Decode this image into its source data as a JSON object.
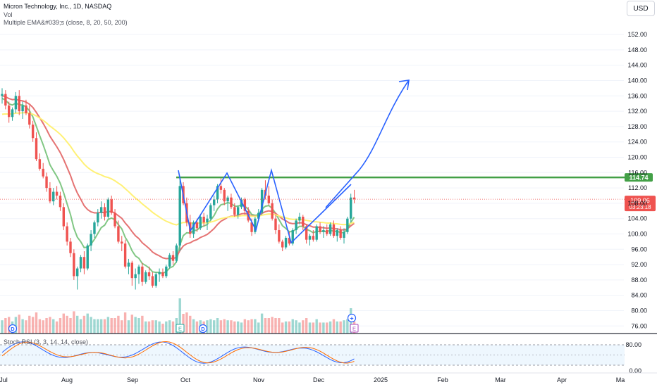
{
  "header": {
    "title": "Micron Technology, Inc., 1D, NASDAQ",
    "vol_label": "Vol",
    "ema_label": "Multiple EMA&#039;s (close, 8, 20, 50, 200)"
  },
  "currency_button": "USD",
  "rsi_label": "Stoch RSI (3, 3, 14, 14, close)",
  "chart_data": {
    "type": "candlestick",
    "symbol": "Micron Technology, Inc.",
    "interval": "1D",
    "exchange": "NASDAQ",
    "y_ticks": [
      "152.00",
      "148.00",
      "144.00",
      "140.00",
      "136.00",
      "132.00",
      "128.00",
      "124.00",
      "120.00",
      "116.00",
      "112.00",
      "108.00",
      "104.00",
      "100.00",
      "96.00",
      "92.00",
      "88.00",
      "84.00",
      "80.00",
      "76.00"
    ],
    "y_tick_values": [
      152,
      148,
      144,
      140,
      136,
      132,
      128,
      124,
      120,
      116,
      112,
      108,
      104,
      100,
      96,
      92,
      88,
      84,
      80,
      76
    ],
    "x_ticks": [
      "Jul",
      "Aug",
      "Sep",
      "Oct",
      "Nov",
      "Dec",
      "2025",
      "Feb",
      "Mar",
      "Apr",
      "Ma"
    ],
    "price_range": [
      73.5,
      155.5
    ],
    "resistance_level": 114.74,
    "resistance_label": "114.74",
    "last_price": "109.06",
    "countdown": "03:23:18",
    "candles": [
      [
        136.0,
        138.0,
        134.0,
        136.5
      ],
      [
        136.5,
        137.5,
        132.5,
        133.5
      ],
      [
        133.5,
        134.5,
        129.0,
        130.5
      ],
      [
        130.5,
        133.0,
        129.5,
        132.5
      ],
      [
        132.5,
        137.0,
        131.5,
        136.0
      ],
      [
        136.0,
        137.5,
        131.0,
        132.0
      ],
      [
        132.0,
        134.5,
        130.0,
        133.5
      ],
      [
        133.5,
        135.0,
        131.0,
        131.5
      ],
      [
        131.5,
        133.5,
        127.5,
        128.5
      ],
      [
        128.5,
        129.5,
        124.0,
        125.0
      ],
      [
        125.0,
        126.5,
        119.0,
        119.5
      ],
      [
        119.5,
        121.0,
        116.5,
        117.0
      ],
      [
        117.0,
        118.5,
        114.5,
        115.0
      ],
      [
        115.0,
        116.0,
        111.0,
        112.0
      ],
      [
        112.0,
        113.5,
        108.0,
        108.5
      ],
      [
        108.5,
        112.0,
        107.5,
        111.0
      ],
      [
        111.0,
        112.5,
        109.0,
        110.0
      ],
      [
        110.0,
        111.0,
        106.0,
        107.0
      ],
      [
        107.0,
        108.0,
        101.0,
        102.0
      ],
      [
        102.0,
        103.0,
        97.0,
        98.0
      ],
      [
        98.0,
        99.0,
        94.0,
        95.0
      ],
      [
        95.0,
        96.0,
        88.0,
        89.0
      ],
      [
        89.0,
        91.5,
        85.5,
        91.0
      ],
      [
        91.0,
        94.5,
        90.0,
        94.0
      ],
      [
        94.0,
        95.5,
        89.5,
        91.0
      ],
      [
        91.0,
        97.5,
        90.5,
        97.0
      ],
      [
        97.0,
        101.0,
        95.5,
        100.0
      ],
      [
        100.0,
        103.5,
        99.0,
        103.0
      ],
      [
        103.0,
        106.5,
        102.0,
        105.5
      ],
      [
        105.5,
        108.5,
        104.0,
        107.0
      ],
      [
        107.0,
        108.0,
        103.5,
        104.5
      ],
      [
        104.5,
        109.5,
        104.0,
        109.0
      ],
      [
        109.0,
        110.0,
        105.0,
        105.5
      ],
      [
        105.5,
        106.5,
        101.5,
        102.0
      ],
      [
        102.0,
        103.5,
        97.5,
        98.0
      ],
      [
        98.0,
        99.5,
        95.5,
        97.5
      ],
      [
        97.5,
        98.5,
        91.0,
        91.5
      ],
      [
        91.5,
        93.5,
        89.5,
        92.5
      ],
      [
        92.5,
        93.0,
        86.5,
        88.5
      ],
      [
        88.5,
        91.0,
        85.5,
        89.5
      ],
      [
        89.5,
        92.0,
        87.0,
        91.5
      ],
      [
        91.5,
        92.5,
        86.5,
        87.5
      ],
      [
        87.5,
        90.5,
        87.0,
        90.0
      ],
      [
        90.0,
        91.5,
        88.0,
        89.0
      ],
      [
        89.0,
        90.0,
        86.0,
        86.5
      ],
      [
        86.5,
        90.0,
        86.0,
        89.5
      ],
      [
        89.5,
        91.0,
        87.5,
        90.0
      ],
      [
        90.0,
        91.0,
        88.5,
        89.0
      ],
      [
        89.0,
        92.0,
        88.5,
        91.5
      ],
      [
        91.5,
        95.0,
        91.0,
        94.5
      ],
      [
        94.5,
        95.5,
        92.0,
        93.0
      ],
      [
        93.0,
        97.5,
        92.5,
        97.0
      ],
      [
        97.0,
        115.0,
        95.5,
        112.5
      ],
      [
        112.5,
        113.5,
        107.5,
        108.0
      ],
      [
        108.0,
        109.5,
        102.0,
        103.0
      ],
      [
        103.0,
        105.0,
        99.0,
        100.0
      ],
      [
        100.0,
        103.5,
        99.0,
        103.0
      ],
      [
        103.0,
        104.0,
        100.5,
        101.5
      ],
      [
        101.5,
        105.0,
        101.0,
        104.5
      ],
      [
        104.5,
        105.5,
        102.0,
        103.0
      ],
      [
        103.0,
        105.0,
        101.0,
        104.0
      ],
      [
        104.0,
        108.0,
        103.5,
        107.5
      ],
      [
        107.5,
        110.0,
        106.0,
        109.0
      ],
      [
        109.0,
        113.0,
        108.0,
        112.5
      ],
      [
        112.5,
        114.5,
        110.5,
        111.5
      ],
      [
        111.5,
        112.0,
        107.5,
        108.5
      ],
      [
        108.5,
        110.0,
        106.0,
        109.5
      ],
      [
        109.5,
        110.5,
        106.5,
        107.0
      ],
      [
        107.0,
        108.0,
        104.5,
        105.0
      ],
      [
        105.0,
        107.5,
        104.0,
        107.0
      ],
      [
        107.0,
        109.5,
        106.5,
        109.0
      ],
      [
        109.0,
        109.5,
        105.0,
        106.0
      ],
      [
        106.0,
        107.0,
        103.0,
        103.5
      ],
      [
        103.0,
        104.0,
        99.5,
        100.5
      ],
      [
        100.5,
        104.5,
        100.0,
        104.0
      ],
      [
        104.0,
        106.5,
        103.5,
        105.5
      ],
      [
        105.5,
        112.0,
        105.0,
        111.5
      ],
      [
        111.5,
        114.0,
        109.0,
        110.0
      ],
      [
        110.0,
        112.5,
        107.5,
        108.0
      ],
      [
        108.0,
        109.0,
        103.5,
        104.0
      ],
      [
        104.0,
        105.0,
        100.0,
        101.0
      ],
      [
        101.0,
        102.5,
        97.5,
        98.0
      ],
      [
        98.0,
        98.5,
        95.5,
        96.5
      ],
      [
        96.5,
        99.5,
        96.0,
        99.0
      ],
      [
        99.0,
        100.5,
        97.0,
        97.5
      ],
      [
        97.5,
        101.5,
        97.0,
        101.0
      ],
      [
        101.0,
        104.0,
        100.0,
        103.5
      ],
      [
        103.5,
        105.5,
        102.5,
        104.5
      ],
      [
        104.5,
        105.0,
        101.0,
        102.0
      ],
      [
        102.0,
        102.5,
        97.5,
        98.5
      ],
      [
        98.5,
        100.0,
        97.0,
        99.5
      ],
      [
        99.5,
        101.0,
        98.0,
        98.5
      ],
      [
        98.5,
        102.5,
        98.0,
        102.0
      ],
      [
        102.0,
        103.0,
        100.0,
        100.5
      ],
      [
        100.5,
        102.0,
        99.0,
        101.0
      ],
      [
        101.0,
        102.5,
        99.5,
        100.0
      ],
      [
        100.0,
        103.0,
        99.5,
        102.5
      ],
      [
        102.5,
        103.5,
        99.0,
        99.5
      ],
      [
        99.5,
        101.5,
        98.0,
        101.0
      ],
      [
        101.0,
        102.0,
        98.5,
        99.0
      ],
      [
        99.0,
        101.5,
        97.5,
        100.5
      ],
      [
        100.5,
        104.5,
        100.0,
        104.0
      ],
      [
        104.0,
        110.5,
        103.0,
        109.5
      ],
      [
        109.5,
        111.5,
        108.0,
        109.06
      ]
    ]
  }
}
